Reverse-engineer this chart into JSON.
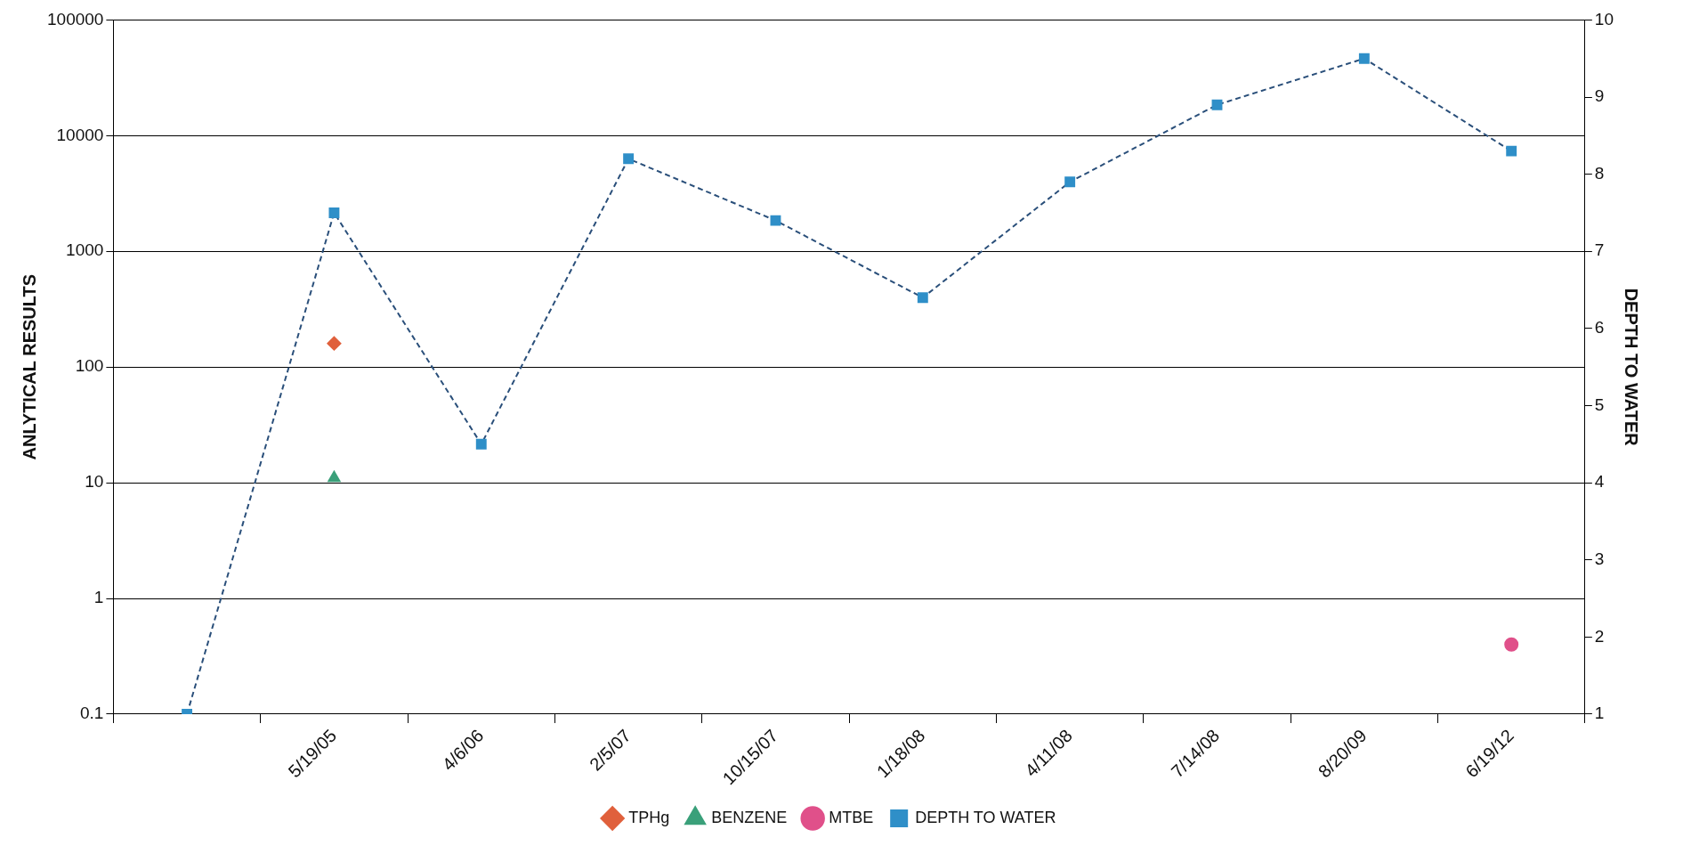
{
  "chart_data": {
    "type": "line",
    "ylabel": "ANLYTICAL RESULTS",
    "y2label": "DEPTH TO WATER",
    "categories": [
      null,
      "5/19/05",
      "4/6/06",
      "2/5/07",
      "10/15/07",
      "1/18/08",
      "4/11/08",
      "7/14/08",
      "8/20/09",
      "6/19/12"
    ],
    "series": [
      {
        "name": "TPHg",
        "type": "scatter",
        "color": "#e0603c",
        "marker": "diamond",
        "values": [
          null,
          160,
          null,
          null,
          null,
          null,
          null,
          null,
          null,
          null
        ]
      },
      {
        "name": "BENZENE",
        "type": "scatter",
        "color": "#3aa07a",
        "marker": "triangle",
        "values": [
          null,
          11,
          null,
          null,
          null,
          null,
          null,
          null,
          null,
          null
        ]
      },
      {
        "name": "MTBE",
        "type": "scatter",
        "color": "#e0508a",
        "marker": "circle",
        "values": [
          null,
          null,
          null,
          null,
          null,
          null,
          null,
          null,
          null,
          0.4
        ]
      },
      {
        "name": "DEPTH TO WATER",
        "axis": "y2",
        "color": "#2f8fc8",
        "marker": "square",
        "line_style": "dashed",
        "values": [
          1,
          7.5,
          4.5,
          8.2,
          7.4,
          6.4,
          7.9,
          8.9,
          9.5,
          8.3
        ]
      }
    ],
    "log": "y",
    "ylim": [
      0.1,
      100000
    ],
    "yticks": [
      0.1,
      1,
      10,
      100,
      1000,
      10000,
      100000
    ],
    "y2lim": [
      1,
      10
    ],
    "y2ticks": [
      1,
      2,
      3,
      4,
      5,
      6,
      7,
      8,
      9,
      10
    ],
    "grid": "y",
    "legend": "bottom"
  }
}
